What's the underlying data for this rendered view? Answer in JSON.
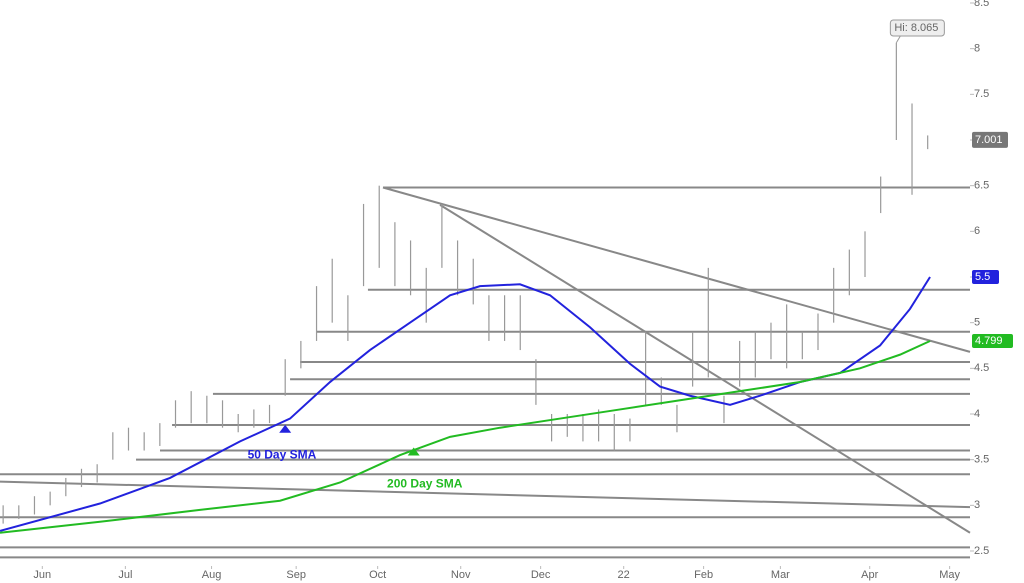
{
  "chart_data": {
    "type": "ohlc",
    "xlim": [
      -0.2,
      61.7
    ],
    "ylim": [
      2.5,
      8.5
    ],
    "yticks": [
      2.5,
      3,
      3.5,
      4,
      4.5,
      5,
      5.5,
      6,
      6.5,
      7,
      7.5,
      8,
      8.5
    ],
    "xticks": [
      {
        "value": 2.5,
        "label": "Jun"
      },
      {
        "value": 7.8,
        "label": "Jul"
      },
      {
        "value": 13.3,
        "label": "Aug"
      },
      {
        "value": 18.7,
        "label": "Sep"
      },
      {
        "value": 23.9,
        "label": "Oct"
      },
      {
        "value": 29.2,
        "label": "Nov"
      },
      {
        "value": 34.3,
        "label": "Dec"
      },
      {
        "value": 39.6,
        "label": "22"
      },
      {
        "value": 44.7,
        "label": "Feb"
      },
      {
        "value": 49.6,
        "label": "Mar"
      },
      {
        "value": 55.3,
        "label": "Apr"
      },
      {
        "value": 60.4,
        "label": "May"
      }
    ],
    "high": [
      3.0,
      3.0,
      3.1,
      3.15,
      3.3,
      3.4,
      3.45,
      3.8,
      3.85,
      3.8,
      3.9,
      4.15,
      4.25,
      4.2,
      4.15,
      4.0,
      4.05,
      4.1,
      4.6,
      4.8,
      5.4,
      5.7,
      5.3,
      6.3,
      6.5,
      6.1,
      5.9,
      5.6,
      6.3,
      5.9,
      5.7,
      5.3,
      5.3,
      5.3,
      4.6,
      4.0,
      4.0,
      4.0,
      4.05,
      4.0,
      3.95,
      4.9,
      4.4,
      4.1,
      4.9,
      5.6,
      4.2,
      4.8,
      4.9,
      5.0,
      5.2,
      4.9,
      5.1,
      5.6,
      5.8,
      6.0,
      6.6,
      8.065,
      7.4,
      7.05
    ],
    "low": [
      2.8,
      2.85,
      2.9,
      3.0,
      3.1,
      3.2,
      3.25,
      3.5,
      3.6,
      3.6,
      3.65,
      3.85,
      3.9,
      3.9,
      3.85,
      3.8,
      3.85,
      3.9,
      4.2,
      4.5,
      4.8,
      5.0,
      4.8,
      5.4,
      5.6,
      5.4,
      5.3,
      5.0,
      5.6,
      5.3,
      5.2,
      4.8,
      4.8,
      4.7,
      4.1,
      3.7,
      3.75,
      3.7,
      3.7,
      3.6,
      3.7,
      4.1,
      4.1,
      3.8,
      4.3,
      4.4,
      3.9,
      4.3,
      4.4,
      4.6,
      4.5,
      4.6,
      4.7,
      5.0,
      5.3,
      5.5,
      6.2,
      7.0,
      6.4,
      6.9
    ],
    "last": {
      "value": 7.001,
      "label": "7.001",
      "color": "#777777"
    },
    "high_label": "Hi: 8.065",
    "series": [
      {
        "name": "50 Day SMA",
        "color": "#2222dd",
        "last_label": "5.5",
        "x": [
          -0.2,
          6.18,
          10.65,
          15.12,
          18.31,
          20.86,
          23.41,
          25.96,
          28.52,
          30.43,
          32.98,
          34.9,
          37.45,
          40.0,
          41.92,
          43.83,
          46.39,
          48.3,
          50.85,
          53.41,
          55.96,
          57.87,
          59.15
        ],
        "values": [
          2.72,
          3.02,
          3.3,
          3.7,
          3.95,
          4.35,
          4.7,
          5.0,
          5.3,
          5.4,
          5.42,
          5.3,
          4.95,
          4.55,
          4.3,
          4.2,
          4.1,
          4.2,
          4.35,
          4.45,
          4.75,
          5.15,
          5.5
        ]
      },
      {
        "name": "200 Day SMA",
        "color": "#22bb22",
        "last_label": "4.799",
        "x": [
          -0.2,
          6.18,
          12.56,
          17.67,
          21.5,
          25.33,
          28.52,
          31.71,
          35.54,
          39.37,
          43.2,
          47.02,
          50.85,
          54.68,
          57.24,
          59.15
        ],
        "values": [
          2.7,
          2.82,
          2.95,
          3.05,
          3.25,
          3.55,
          3.75,
          3.85,
          3.95,
          4.05,
          4.15,
          4.25,
          4.35,
          4.5,
          4.65,
          4.799
        ]
      }
    ],
    "levels": [
      {
        "value": 6.48,
        "start": 24.24
      },
      {
        "value": 5.36,
        "start": 23.28
      },
      {
        "value": 4.9,
        "start": 19.97
      },
      {
        "value": 4.57,
        "start": 18.95
      },
      {
        "value": 4.38,
        "start": 18.31
      },
      {
        "value": 4.22,
        "start": 13.39
      },
      {
        "value": 3.88,
        "start": 10.78
      },
      {
        "value": 3.6,
        "start": 10.01
      },
      {
        "value": 3.5,
        "start": 8.48
      },
      {
        "value": 3.34,
        "start": -0.2
      },
      {
        "value": 2.87,
        "start": -0.2
      },
      {
        "value": 2.54,
        "start": -0.2
      },
      {
        "value": 2.43,
        "start": -0.2
      }
    ],
    "trendlines": [
      {
        "x": [
          24.24,
          61.7
        ],
        "y": [
          6.48,
          4.68
        ]
      },
      {
        "x": [
          27.88,
          61.7
        ],
        "y": [
          6.29,
          2.7
        ]
      },
      {
        "x": [
          -0.2,
          61.7
        ],
        "y": [
          3.26,
          2.98
        ]
      }
    ]
  }
}
